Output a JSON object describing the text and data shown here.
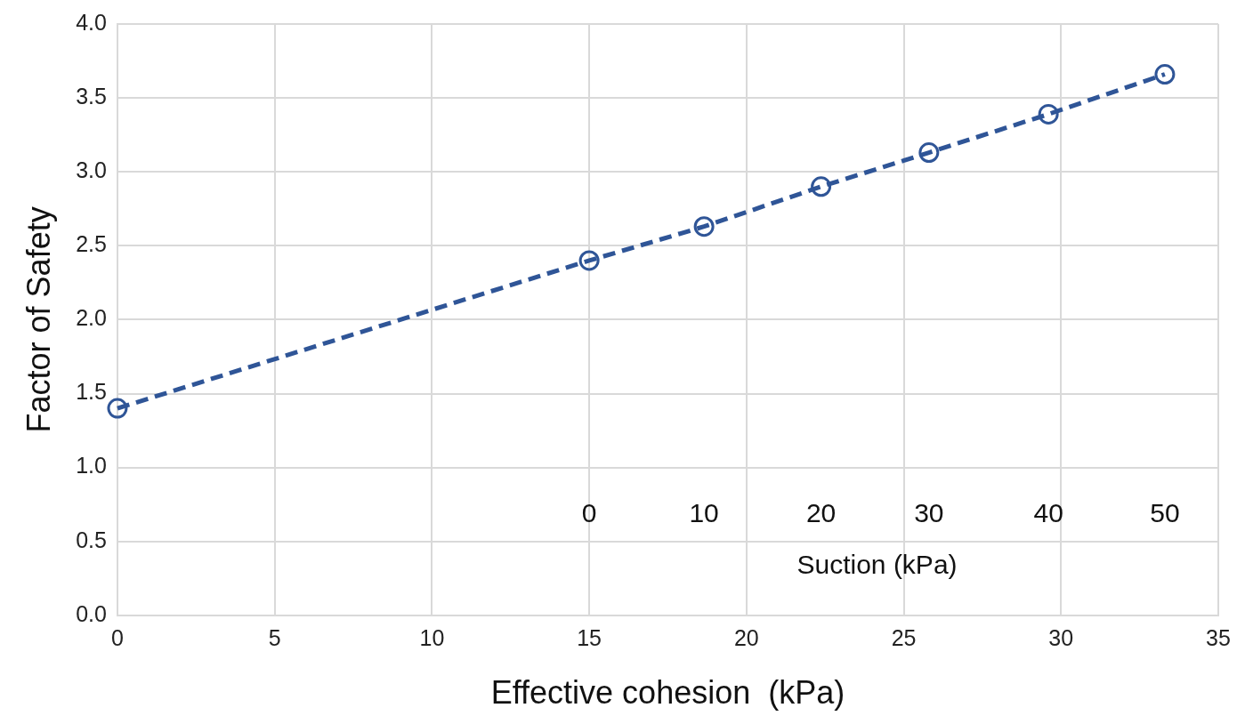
{
  "chart_data": {
    "type": "line",
    "xlabel": "Effective cohesion  (kPa)",
    "ylabel": "Factor of Safety",
    "x": [
      0,
      15,
      18.65,
      22.37,
      25.8,
      29.6,
      33.3
    ],
    "series": [
      {
        "color": "#2f5597",
        "values": [
          1.4,
          2.4,
          2.63,
          2.9,
          3.13,
          3.39,
          3.66
        ]
      }
    ],
    "xlim": [
      0,
      35
    ],
    "xticks": [
      0,
      5,
      10,
      15,
      20,
      25,
      30,
      35
    ],
    "ylim": [
      0,
      4
    ],
    "yticks": [
      {
        "value": 0,
        "label": "0.0"
      },
      {
        "value": 0.5,
        "label": "0.5"
      },
      {
        "value": 1,
        "label": "1.0"
      },
      {
        "value": 1.5,
        "label": "1.5"
      },
      {
        "value": 2,
        "label": "2.0"
      },
      {
        "value": 2.5,
        "label": "2.5"
      },
      {
        "value": 3,
        "label": "3.0"
      },
      {
        "value": 3.5,
        "label": "3.5"
      },
      {
        "value": 4,
        "label": "4.0"
      }
    ],
    "annotations": [
      "0",
      "10",
      "20",
      "30",
      "40",
      "50",
      "Suction (kPa)"
    ],
    "grid": true,
    "marker": "circle",
    "line_style": "dashed"
  }
}
